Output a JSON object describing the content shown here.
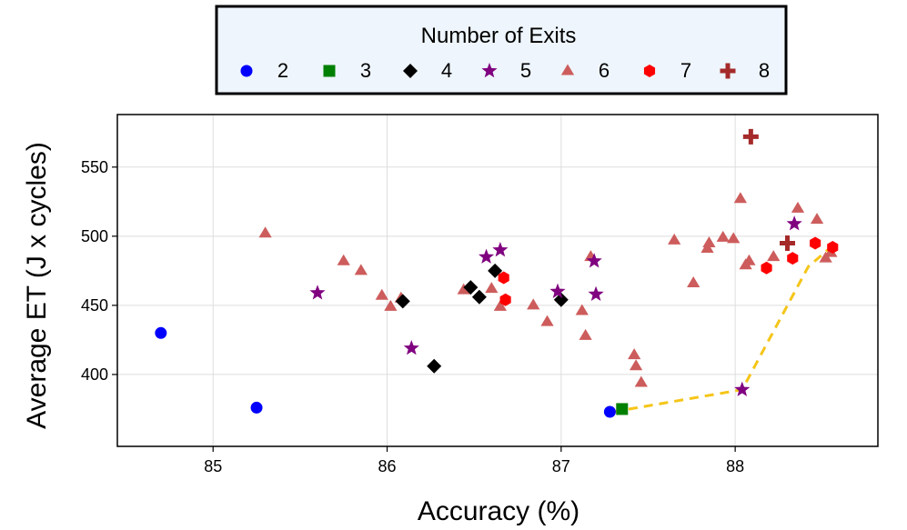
{
  "chart_data": {
    "type": "scatter",
    "title": "",
    "xlabel": "Accuracy (%)",
    "ylabel": "Average ET (J x cycles)",
    "xlim": [
      84.45,
      88.82
    ],
    "ylim": [
      348,
      588
    ],
    "xticks": [
      85,
      86,
      87,
      88
    ],
    "yticks": [
      400,
      450,
      500,
      550
    ],
    "grid": true,
    "legend": {
      "title": "Number of Exits",
      "placement": "top-center",
      "orientation": "horizontal"
    },
    "series": [
      {
        "name": "2",
        "marker": "circle",
        "color": "#0000ff",
        "points": [
          [
            84.7,
            430
          ],
          [
            85.25,
            376
          ],
          [
            87.28,
            373
          ]
        ]
      },
      {
        "name": "3",
        "marker": "square",
        "color": "#008000",
        "points": [
          [
            87.35,
            375
          ]
        ]
      },
      {
        "name": "4",
        "marker": "diamond",
        "color": "#000000",
        "points": [
          [
            86.09,
            453
          ],
          [
            86.27,
            406
          ],
          [
            86.48,
            463
          ],
          [
            86.53,
            456
          ],
          [
            86.62,
            475
          ],
          [
            87.0,
            454
          ]
        ]
      },
      {
        "name": "5",
        "marker": "star",
        "color": "#800080",
        "points": [
          [
            85.6,
            459
          ],
          [
            86.14,
            419
          ],
          [
            86.57,
            485
          ],
          [
            86.65,
            490
          ],
          [
            86.98,
            460
          ],
          [
            87.19,
            482
          ],
          [
            87.2,
            458
          ],
          [
            88.04,
            389
          ],
          [
            88.34,
            509
          ]
        ]
      },
      {
        "name": "6",
        "marker": "triangle",
        "color": "#cd5c5c",
        "points": [
          [
            85.3,
            502
          ],
          [
            85.75,
            482
          ],
          [
            85.85,
            475
          ],
          [
            85.97,
            457
          ],
          [
            86.02,
            449
          ],
          [
            86.08,
            455
          ],
          [
            86.44,
            461
          ],
          [
            86.6,
            462
          ],
          [
            86.65,
            449
          ],
          [
            86.84,
            450
          ],
          [
            86.92,
            438
          ],
          [
            87.12,
            446
          ],
          [
            87.14,
            428
          ],
          [
            87.17,
            485
          ],
          [
            87.42,
            414
          ],
          [
            87.43,
            406
          ],
          [
            87.46,
            394
          ],
          [
            87.65,
            497
          ],
          [
            87.76,
            466
          ],
          [
            87.84,
            491
          ],
          [
            87.85,
            495
          ],
          [
            87.93,
            499
          ],
          [
            87.99,
            498
          ],
          [
            88.03,
            527
          ],
          [
            88.06,
            479
          ],
          [
            88.08,
            482
          ],
          [
            88.22,
            485
          ],
          [
            88.36,
            520
          ],
          [
            88.47,
            512
          ],
          [
            88.52,
            484
          ],
          [
            88.55,
            488
          ]
        ]
      },
      {
        "name": "7",
        "marker": "hexagon",
        "color": "#ff0000",
        "points": [
          [
            86.67,
            470
          ],
          [
            86.68,
            454
          ],
          [
            88.18,
            477
          ],
          [
            88.33,
            484
          ],
          [
            88.46,
            495
          ],
          [
            88.56,
            492
          ]
        ]
      },
      {
        "name": "8",
        "marker": "plus",
        "color": "#a52a2a",
        "points": [
          [
            88.09,
            572
          ],
          [
            88.3,
            495
          ]
        ]
      }
    ],
    "pareto_front": {
      "color": "#f5c518",
      "style": "dashed",
      "points": [
        [
          87.3,
          373
        ],
        [
          88.04,
          389
        ],
        [
          88.42,
          478
        ],
        [
          88.55,
          492
        ]
      ]
    }
  }
}
